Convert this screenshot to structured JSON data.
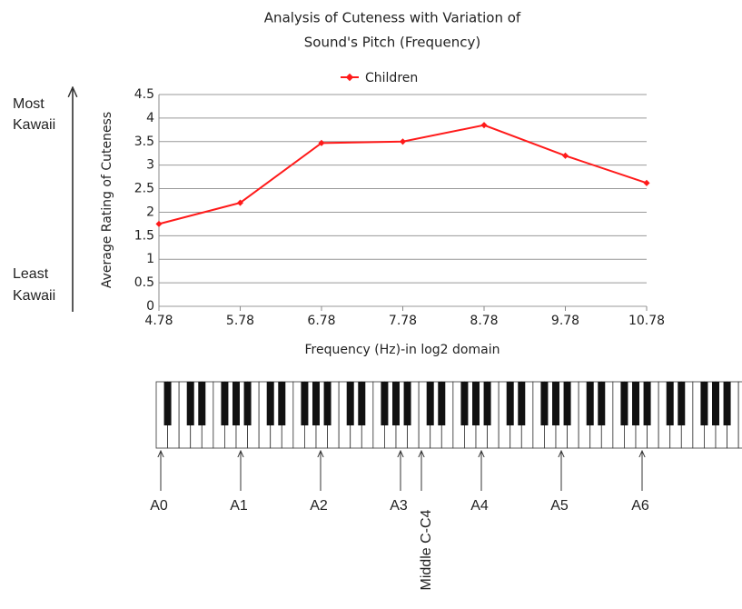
{
  "chart_data": {
    "type": "line",
    "title": [
      "Analysis of Cuteness with Variation of",
      "Sound's Pitch (Frequency)"
    ],
    "x_label": "Frequency (Hz)-in log2 domain",
    "y_label": "Average Rating of Cuteness",
    "x": [
      4.78,
      5.78,
      6.78,
      7.78,
      8.78,
      9.78,
      10.78
    ],
    "series": [
      {
        "name": "Children",
        "color": "#ff1a1a",
        "values": [
          1.75,
          2.2,
          3.47,
          3.5,
          3.85,
          3.2,
          2.62
        ]
      }
    ],
    "xlim": [
      4.78,
      10.78
    ],
    "xticks": [
      4.78,
      5.78,
      6.78,
      7.78,
      8.78,
      9.78,
      10.78
    ],
    "ylim": [
      0,
      4.5
    ],
    "yticks": [
      0,
      0.5,
      1,
      1.5,
      2,
      2.5,
      3,
      3.5,
      4,
      4.5
    ],
    "grid": true,
    "legend": "top",
    "scale_labels": {
      "top": [
        "Most",
        "Kawaii"
      ],
      "bottom": [
        "Least",
        "Kawaii"
      ]
    }
  },
  "piano": {
    "labels": [
      "A0",
      "A1",
      "A2",
      "A3",
      "A4",
      "A5",
      "A6"
    ],
    "middle_c": "Middle C-C4"
  }
}
